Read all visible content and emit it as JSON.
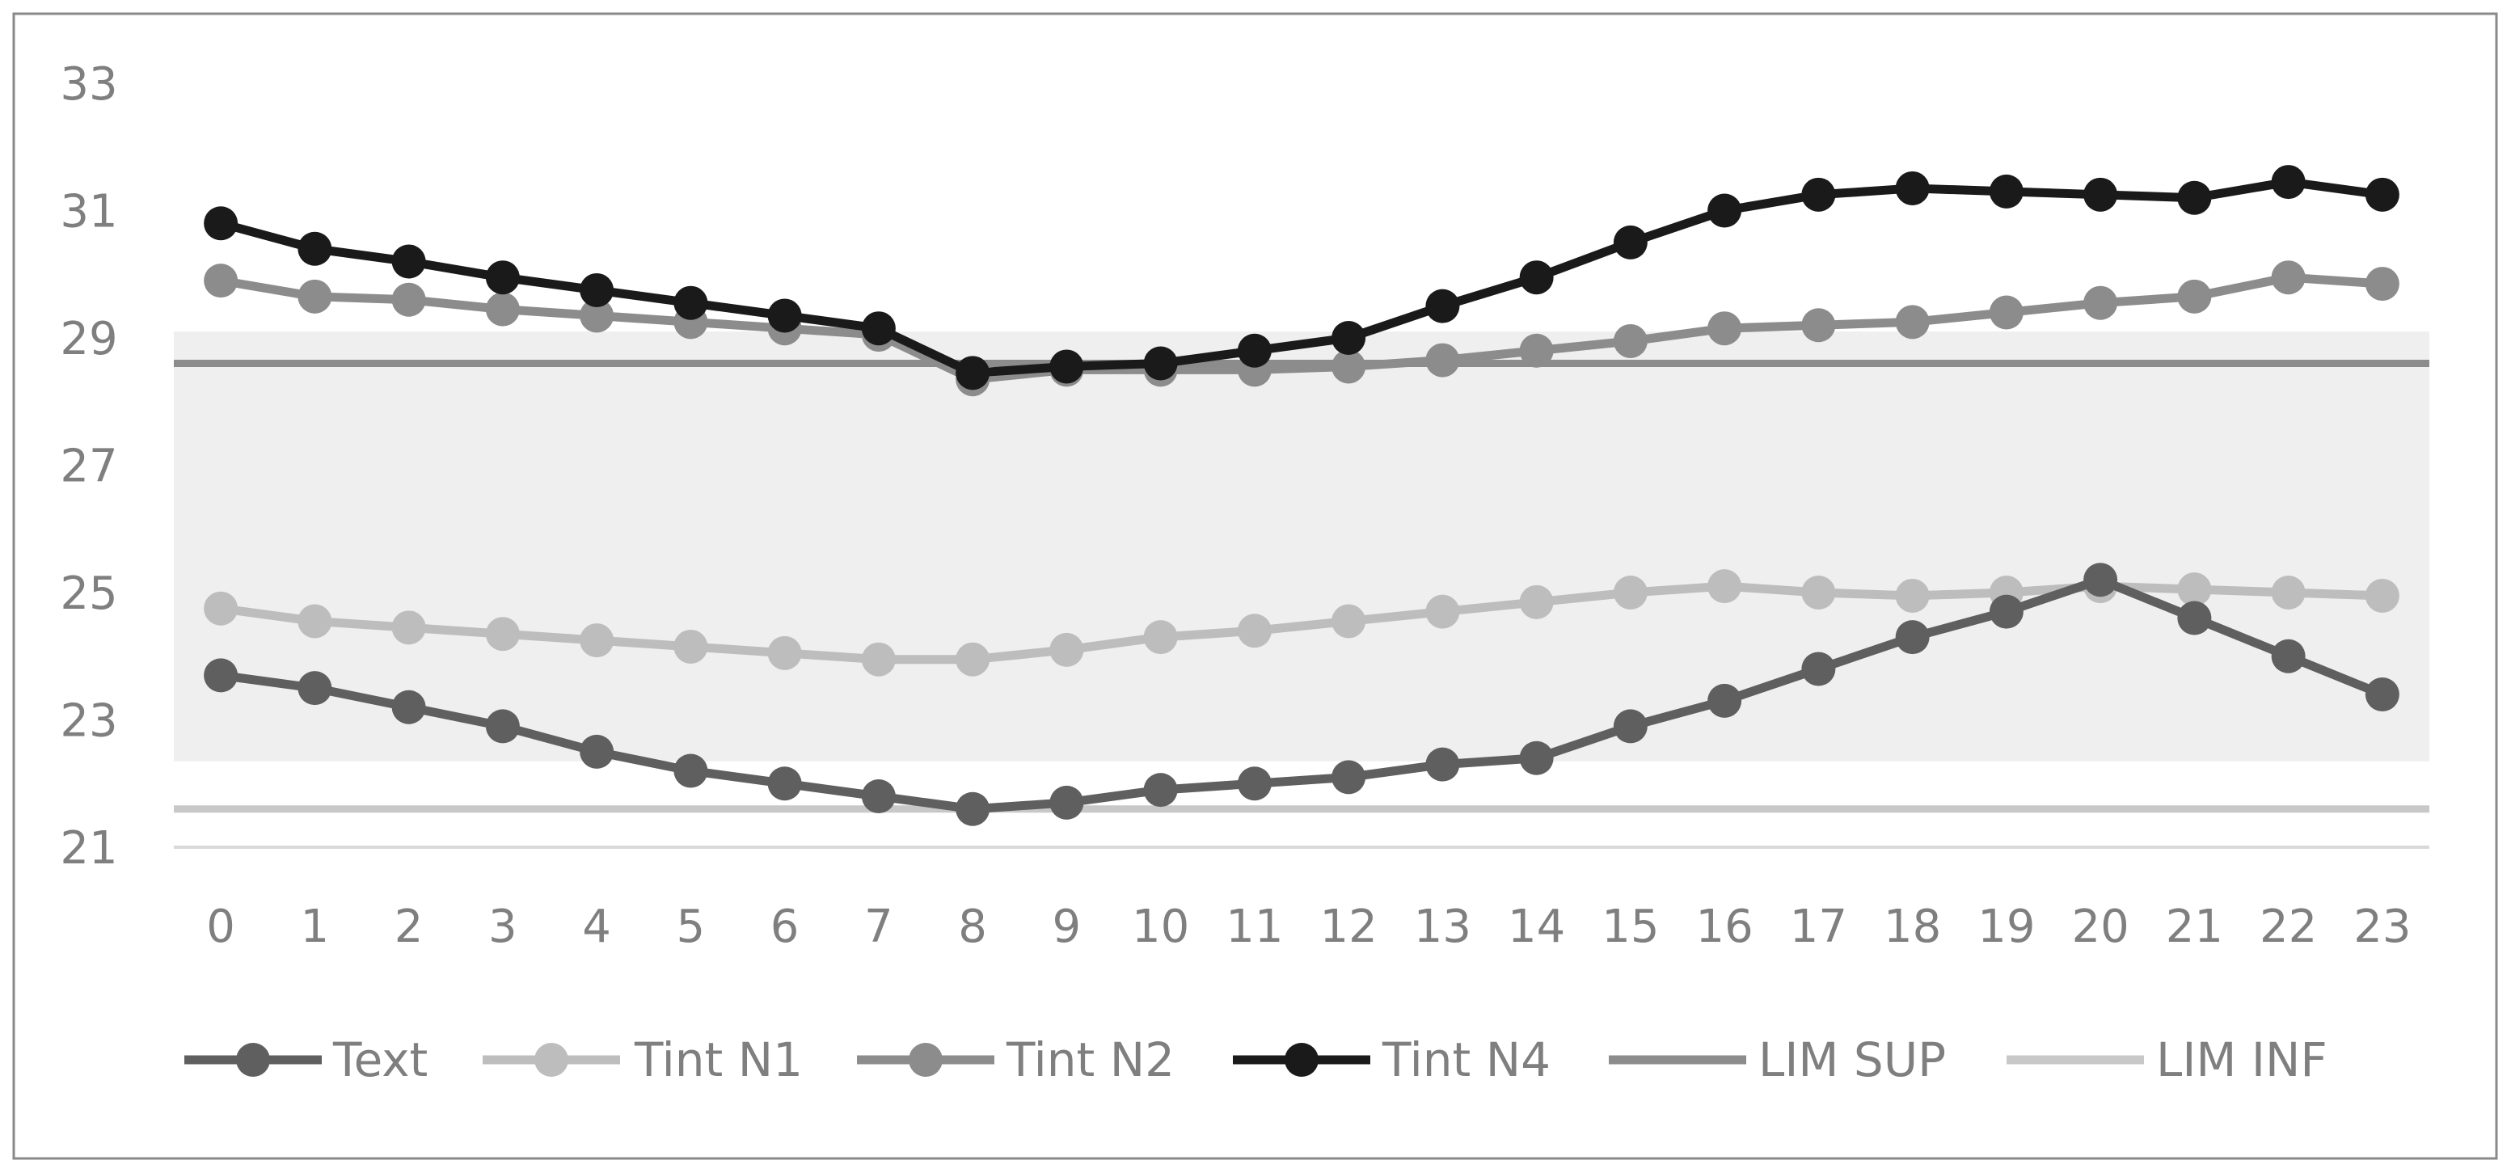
{
  "chart_data": {
    "type": "line",
    "title": "",
    "xlabel": "",
    "ylabel": "",
    "x": [
      0,
      1,
      2,
      3,
      4,
      5,
      6,
      7,
      8,
      9,
      10,
      11,
      12,
      13,
      14,
      15,
      16,
      17,
      18,
      19,
      20,
      21,
      22,
      23
    ],
    "ylim": [
      21,
      33
    ],
    "yticks": [
      21,
      23,
      25,
      27,
      29,
      31,
      33
    ],
    "grid": false,
    "legend_position": "bottom",
    "comfort_band": {
      "from": 22.35,
      "to": 29.1,
      "color": "#efefef"
    },
    "series": [
      {
        "name": "Text",
        "color": "#5f5f5f",
        "marker": "circle",
        "values": [
          23.7,
          23.5,
          23.2,
          22.9,
          22.5,
          22.2,
          22.0,
          21.8,
          21.6,
          21.7,
          21.9,
          22.0,
          22.1,
          22.3,
          22.4,
          22.9,
          23.3,
          23.8,
          24.3,
          24.7,
          25.2,
          24.6,
          24.0,
          23.4
        ]
      },
      {
        "name": "Tint N1",
        "color": "#bdbdbd",
        "marker": "circle",
        "values": [
          24.75,
          24.55,
          24.45,
          24.35,
          24.25,
          24.15,
          24.05,
          23.95,
          23.95,
          24.1,
          24.3,
          24.4,
          24.55,
          24.7,
          24.85,
          25.0,
          25.1,
          25.0,
          24.95,
          25.0,
          25.1,
          25.05,
          25.0,
          24.95
        ]
      },
      {
        "name": "Tint N2",
        "color": "#8c8c8c",
        "marker": "circle",
        "values": [
          29.9,
          29.65,
          29.6,
          29.45,
          29.35,
          29.25,
          29.15,
          29.05,
          28.35,
          28.5,
          28.5,
          28.5,
          28.55,
          28.65,
          28.8,
          28.95,
          29.15,
          29.2,
          29.25,
          29.4,
          29.55,
          29.65,
          29.95,
          29.85
        ]
      },
      {
        "name": "Tint N4",
        "color": "#1a1a1a",
        "marker": "circle",
        "values": [
          30.8,
          30.4,
          30.2,
          29.95,
          29.75,
          29.55,
          29.35,
          29.15,
          28.45,
          28.55,
          28.6,
          28.8,
          29.0,
          29.5,
          29.95,
          30.5,
          31.0,
          31.25,
          31.35,
          31.3,
          31.25,
          31.2,
          31.45,
          31.25
        ]
      },
      {
        "name": "LIM SUP",
        "color": "#8c8c8c",
        "marker": "none",
        "constant": 28.6
      },
      {
        "name": "LIM INF",
        "color": "#c8c8c8",
        "marker": "none",
        "constant": 21.6
      }
    ]
  }
}
